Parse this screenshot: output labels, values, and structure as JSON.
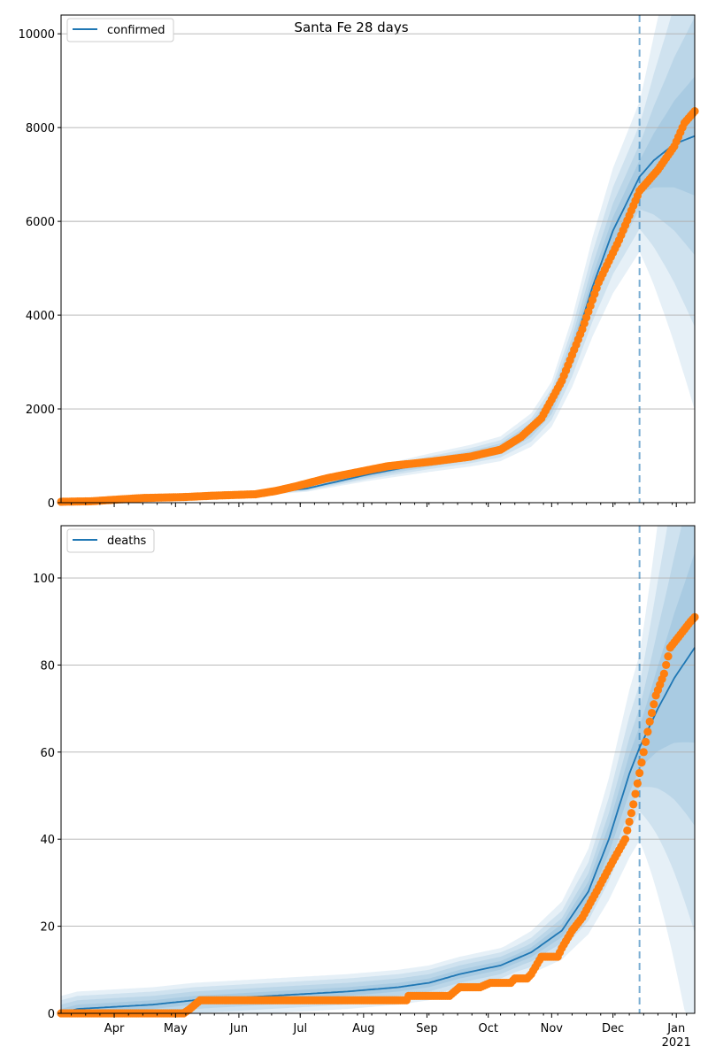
{
  "figure": {
    "title": "Santa Fe 28 days",
    "colors": {
      "model": "#1f77b4",
      "observed": "#ff7f0e",
      "band": "#1f77b4",
      "grid": "#b0b0b0",
      "forecast_line": "#1f77b4"
    }
  },
  "chart_data": [
    {
      "type": "line",
      "name": "confirmed-panel",
      "legend": "confirmed",
      "legend_position": "top-left",
      "grid": "horizontal",
      "x_range_days": [
        0,
        310
      ],
      "forecast_start_day": 283,
      "ylim": [
        0,
        10400
      ],
      "yticks": [
        0,
        2000,
        4000,
        6000,
        8000,
        10000
      ],
      "model_knots": [
        [
          0,
          0
        ],
        [
          30,
          60
        ],
        [
          60,
          110
        ],
        [
          90,
          170
        ],
        [
          120,
          300
        ],
        [
          150,
          600
        ],
        [
          180,
          850
        ],
        [
          200,
          1000
        ],
        [
          215,
          1150
        ],
        [
          230,
          1550
        ],
        [
          240,
          2100
        ],
        [
          250,
          3200
        ],
        [
          260,
          4600
        ],
        [
          270,
          5800
        ],
        [
          283,
          6950
        ],
        [
          290,
          7300
        ],
        [
          300,
          7650
        ],
        [
          310,
          7820
        ]
      ],
      "band_widths_pct": [
        0.05,
        0.1,
        0.16,
        0.23
      ],
      "observed_knots": [
        [
          0,
          20
        ],
        [
          15,
          30
        ],
        [
          25,
          60
        ],
        [
          40,
          100
        ],
        [
          60,
          120
        ],
        [
          75,
          150
        ],
        [
          95,
          180
        ],
        [
          105,
          250
        ],
        [
          115,
          350
        ],
        [
          130,
          520
        ],
        [
          145,
          650
        ],
        [
          160,
          780
        ],
        [
          180,
          870
        ],
        [
          200,
          980
        ],
        [
          215,
          1130
        ],
        [
          225,
          1400
        ],
        [
          235,
          1800
        ],
        [
          245,
          2600
        ],
        [
          255,
          3700
        ],
        [
          263,
          4700
        ],
        [
          273,
          5600
        ],
        [
          283,
          6650
        ],
        [
          292,
          7100
        ],
        [
          300,
          7600
        ],
        [
          305,
          8100
        ],
        [
          310,
          8350
        ]
      ]
    },
    {
      "type": "line",
      "name": "deaths-panel",
      "legend": "deaths",
      "legend_position": "top-left",
      "grid": "horizontal",
      "x_range_days": [
        0,
        310
      ],
      "forecast_start_day": 283,
      "ylim": [
        0,
        112
      ],
      "yticks": [
        0,
        20,
        40,
        60,
        80,
        100
      ],
      "xtick_labels": [
        "Apr",
        "May",
        "Jun",
        "Jul",
        "Aug",
        "Sep",
        "Oct",
        "Nov",
        "Dec",
        "Jan\n2021"
      ],
      "xtick_days": [
        26,
        56,
        87,
        117,
        148,
        179,
        209,
        240,
        270,
        301
      ],
      "model_knots": [
        [
          0,
          0
        ],
        [
          8,
          1
        ],
        [
          45,
          2
        ],
        [
          65,
          3
        ],
        [
          140,
          5
        ],
        [
          165,
          6
        ],
        [
          180,
          7
        ],
        [
          195,
          9
        ],
        [
          215,
          11
        ],
        [
          230,
          14
        ],
        [
          245,
          19
        ],
        [
          258,
          28
        ],
        [
          268,
          40
        ],
        [
          278,
          55
        ],
        [
          283,
          61
        ],
        [
          292,
          70
        ],
        [
          300,
          77
        ],
        [
          310,
          84
        ]
      ],
      "band_widths_pct": [
        0.08,
        0.15,
        0.24,
        0.35
      ],
      "band_min_abs": [
        1,
        2,
        3,
        4
      ],
      "observed_knots": [
        [
          0,
          0
        ],
        [
          60,
          0
        ],
        [
          63,
          1
        ],
        [
          68,
          3
        ],
        [
          100,
          3
        ],
        [
          120,
          3
        ],
        [
          169,
          3
        ],
        [
          170,
          4
        ],
        [
          190,
          4
        ],
        [
          195,
          6
        ],
        [
          205,
          6
        ],
        [
          210,
          7
        ],
        [
          220,
          7
        ],
        [
          222,
          8
        ],
        [
          228,
          8
        ],
        [
          230,
          9
        ],
        [
          235,
          13
        ],
        [
          243,
          13
        ],
        [
          245,
          15
        ],
        [
          250,
          19
        ],
        [
          255,
          22
        ],
        [
          262,
          28
        ],
        [
          270,
          35
        ],
        [
          276,
          40
        ],
        [
          280,
          48
        ],
        [
          285,
          60
        ],
        [
          288,
          67
        ],
        [
          291,
          73
        ],
        [
          295,
          78
        ],
        [
          298,
          84
        ],
        [
          303,
          87
        ],
        [
          308,
          90
        ],
        [
          310,
          91
        ]
      ]
    }
  ]
}
